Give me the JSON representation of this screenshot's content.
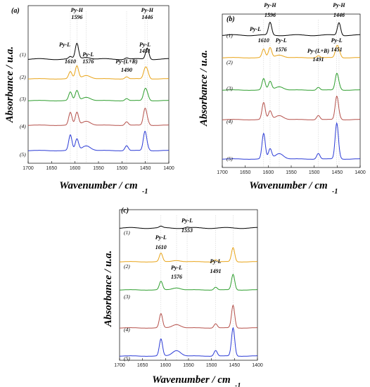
{
  "chart_data": [
    {
      "panel": "(a)",
      "type": "line",
      "xlim": [
        1700,
        1400
      ],
      "xticks": [
        "1700",
        "1650",
        "1600",
        "1550",
        "1500",
        "1450",
        "1400"
      ],
      "xlabel": "Wavenumber / cm",
      "xlabel_sup": "-1",
      "ylabel": "Absorbance / u.a.",
      "series": [
        {
          "name": "(1)",
          "color": "#000000",
          "peaks": [
            [
              1610,
              3
            ],
            [
              1596,
              22
            ],
            [
              1576,
              3
            ],
            [
              1490,
              2
            ],
            [
              1446,
              16
            ]
          ]
        },
        {
          "name": "(2)",
          "color": "#e8a317",
          "peaks": [
            [
              1610,
              10
            ],
            [
              1596,
              18
            ],
            [
              1576,
              5
            ],
            [
              1490,
              3
            ],
            [
              1451,
              12
            ],
            [
              1446,
              10
            ]
          ]
        },
        {
          "name": "(3)",
          "color": "#2e9e2e",
          "peaks": [
            [
              1610,
              12
            ],
            [
              1596,
              14
            ],
            [
              1576,
              5
            ],
            [
              1490,
              3
            ],
            [
              1451,
              14
            ],
            [
              1446,
              8
            ]
          ]
        },
        {
          "name": "(4)",
          "color": "#b5504a",
          "peaks": [
            [
              1610,
              18
            ],
            [
              1596,
              18
            ],
            [
              1576,
              6
            ],
            [
              1490,
              5
            ],
            [
              1451,
              22
            ],
            [
              1446,
              6
            ]
          ]
        },
        {
          "name": "(5)",
          "color": "#2b3bd6",
          "peaks": [
            [
              1610,
              22
            ],
            [
              1596,
              16
            ],
            [
              1576,
              7
            ],
            [
              1490,
              7
            ],
            [
              1451,
              26
            ],
            [
              1446,
              4
            ]
          ]
        }
      ],
      "annotations": [
        "Py-H 1596",
        "Py-L",
        "Py-L 1451",
        "Py-H 1446",
        "1610",
        "Py-L 1576",
        "Py-(L+B) 1490"
      ]
    },
    {
      "panel": "(b)",
      "type": "line",
      "xlim": [
        1700,
        1400
      ],
      "xticks": [
        "1700",
        "1650",
        "1600",
        "1550",
        "1500",
        "1450",
        "1400"
      ],
      "xlabel": "Wavenumber / cm",
      "xlabel_sup": "-1",
      "ylabel": "Absorbance / u.a.",
      "series": [
        {
          "name": "(1)",
          "color": "#000000",
          "peaks": [
            [
              1596,
              18
            ],
            [
              1446,
              18
            ]
          ]
        },
        {
          "name": "(2)",
          "color": "#e8a317",
          "peaks": [
            [
              1610,
              12
            ],
            [
              1596,
              14
            ],
            [
              1576,
              4
            ],
            [
              1491,
              3
            ],
            [
              1451,
              14
            ],
            [
              1446,
              8
            ]
          ]
        },
        {
          "name": "(3)",
          "color": "#2e9e2e",
          "peaks": [
            [
              1610,
              16
            ],
            [
              1596,
              12
            ],
            [
              1576,
              5
            ],
            [
              1491,
              4
            ],
            [
              1451,
              22
            ],
            [
              1446,
              5
            ]
          ]
        },
        {
          "name": "(4)",
          "color": "#b5504a",
          "peaks": [
            [
              1610,
              24
            ],
            [
              1596,
              12
            ],
            [
              1576,
              6
            ],
            [
              1491,
              6
            ],
            [
              1451,
              32
            ],
            [
              1446,
              4
            ]
          ]
        },
        {
          "name": "(5)",
          "color": "#2b3bd6",
          "peaks": [
            [
              1610,
              36
            ],
            [
              1596,
              14
            ],
            [
              1576,
              8
            ],
            [
              1491,
              8
            ],
            [
              1451,
              50
            ],
            [
              1446,
              3
            ]
          ]
        }
      ],
      "annotations": [
        "Py-H 1596",
        "Py-H 1446",
        "Py-L 1610",
        "Py-L 1576",
        "Py-L 1451",
        "Py-(L+B) 1491"
      ]
    },
    {
      "panel": "(c)",
      "type": "line",
      "xlim": [
        1700,
        1400
      ],
      "xticks": [
        "1700",
        "1650",
        "1600",
        "1550",
        "1500",
        "1450",
        "1400"
      ],
      "xlabel": "Wavenumber / cm",
      "xlabel_sup": "-1",
      "ylabel": "Absorbance / u.a.",
      "series": [
        {
          "name": "(1)",
          "color": "#000000",
          "peaks": [
            [
              1610,
              2
            ],
            [
              1553,
              1
            ]
          ]
        },
        {
          "name": "(2)",
          "color": "#e8a317",
          "peaks": [
            [
              1610,
              12
            ],
            [
              1576,
              2
            ],
            [
              1491,
              3
            ],
            [
              1453,
              20
            ]
          ]
        },
        {
          "name": "(3)",
          "color": "#2e9e2e",
          "peaks": [
            [
              1610,
              12
            ],
            [
              1576,
              3
            ],
            [
              1491,
              4
            ],
            [
              1453,
              22
            ]
          ]
        },
        {
          "name": "(4)",
          "color": "#b5504a",
          "peaks": [
            [
              1610,
              20
            ],
            [
              1576,
              5
            ],
            [
              1491,
              6
            ],
            [
              1453,
              32
            ]
          ]
        },
        {
          "name": "(5)",
          "color": "#2b3bd6",
          "peaks": [
            [
              1610,
              24
            ],
            [
              1576,
              8
            ],
            [
              1491,
              8
            ],
            [
              1453,
              40
            ]
          ]
        }
      ],
      "annotations": [
        "Py-L 1553",
        "Py-L 1610",
        "Py-L 1491",
        "Py-L 1576"
      ]
    }
  ]
}
